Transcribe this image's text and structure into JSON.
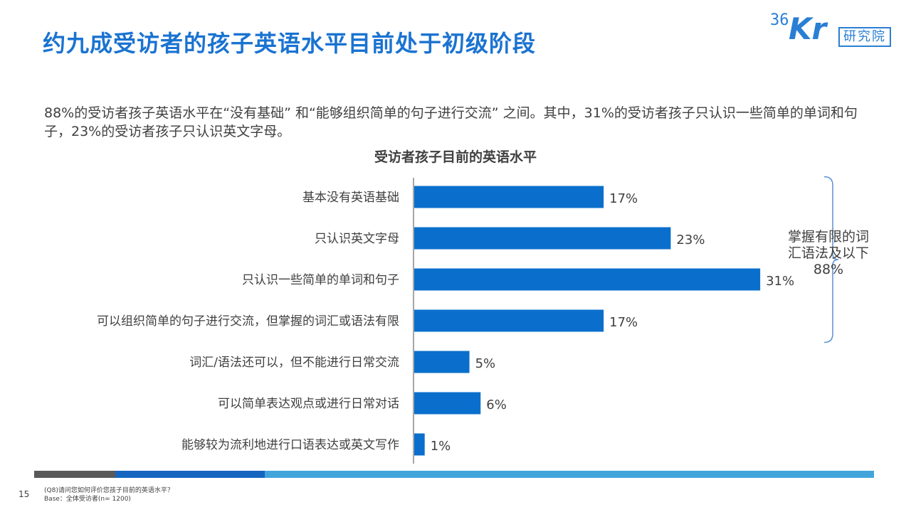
{
  "slide": {
    "title": "约九成受访者的孩子英语水平目前处于初级阶段",
    "summary": "88%的受访者孩子英语水平在“没有基础” 和“能够组织简单的句子进行交流” 之间。其中，31%的受访者孩子只认识一些简单的单词和句子，23%的受访者孩子只认识英文字母。",
    "page_number": "15",
    "question_note": "(Q8)请问您如何评价您孩子目前的英语水平？",
    "base_note": "Base：全体受访者(n= 1200)"
  },
  "logo": {
    "number": "36",
    "letters": "Kr",
    "institute": "研究院",
    "color": "#2a7fd4"
  },
  "chart_data": {
    "type": "bar",
    "orientation": "horizontal",
    "title": "受访者孩子目前的英语水平",
    "categories": [
      "基本没有英语基础",
      "只认识英文字母",
      "只认识一些简单的单词和句子",
      "可以组织简单的句子进行交流，但掌握的词汇或语法有限",
      "词汇/语法还可以，但不能进行日常交流",
      "可以简单表达观点或进行日常对话",
      "能够较为流利地进行口语表达或英文写作"
    ],
    "values": [
      17,
      23,
      31,
      17,
      5,
      6,
      1
    ],
    "data_labels": [
      "17%",
      "23%",
      "31%",
      "17%",
      "5%",
      "6%",
      "1%"
    ],
    "unit": "%",
    "xlim": [
      0,
      35
    ],
    "bar_color": "#0a6fcc",
    "grid": false,
    "annotation": {
      "text_line1": "掌握有限的词",
      "text_line2": "汇语法及以下",
      "value": "88%",
      "covers_categories": [
        0,
        1,
        2,
        3
      ]
    }
  }
}
